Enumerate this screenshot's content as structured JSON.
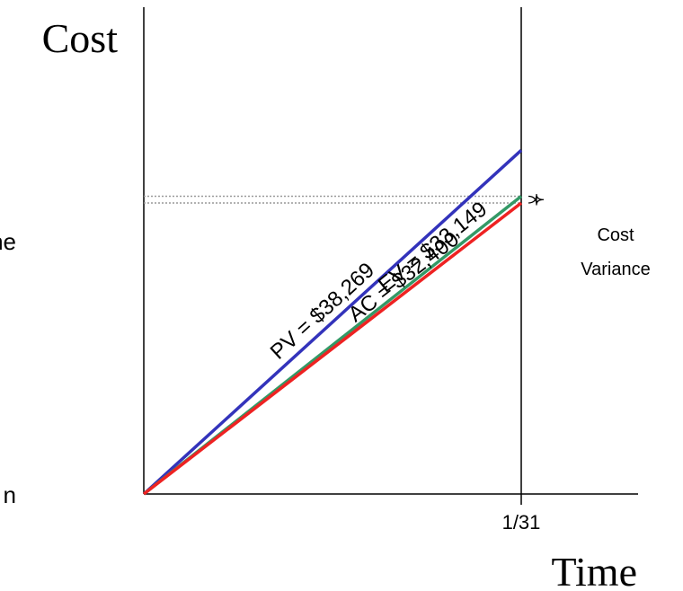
{
  "chart_data": {
    "type": "line",
    "ylabel": "Cost",
    "xlabel": "Time",
    "x_ticks": [
      "1/31"
    ],
    "fragments": [
      "ne",
      "n"
    ],
    "colors": {
      "pv": "#3333bb",
      "ev": "#339966",
      "ac": "#ee2222",
      "axis": "#000000",
      "guide": "#999999"
    },
    "series": [
      {
        "name": "PV",
        "label": "PV = $38,269",
        "values": [
          0,
          38269
        ]
      },
      {
        "name": "EV",
        "label": "EV = $33,149",
        "values": [
          0,
          33149
        ]
      },
      {
        "name": "AC",
        "label": "AC = $32,400",
        "values": [
          0,
          32400
        ]
      }
    ],
    "annotation": {
      "line1": "Cost",
      "line2": "Variance"
    },
    "ylim": [
      0,
      49000
    ],
    "grid": false
  }
}
